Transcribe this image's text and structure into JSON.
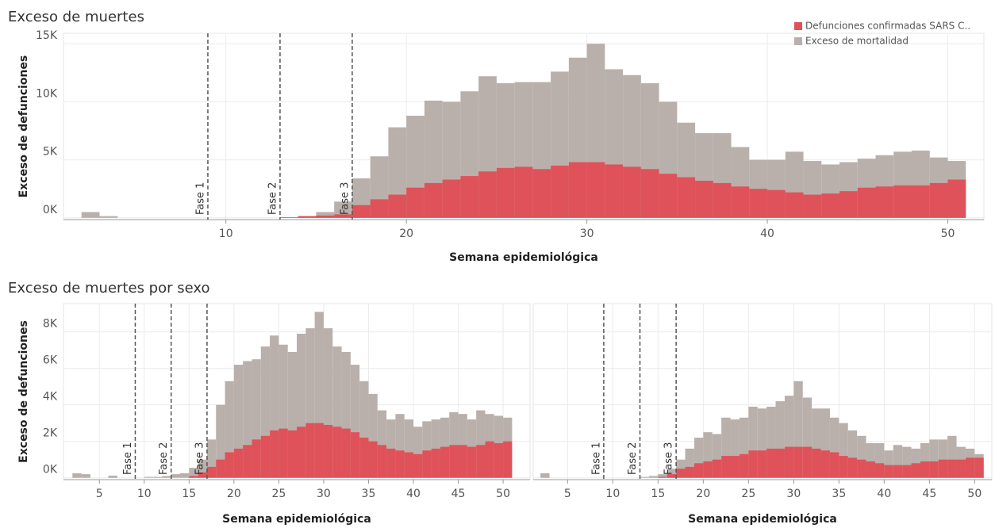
{
  "chart_data": [
    {
      "type": "bar",
      "title": "Exceso de muertes",
      "xlabel": "Semana epidemiológica",
      "ylabel": "Exceso de defunciones",
      "x": [
        2,
        3,
        4,
        5,
        6,
        7,
        8,
        9,
        10,
        11,
        12,
        13,
        14,
        15,
        16,
        17,
        18,
        19,
        20,
        21,
        22,
        23,
        24,
        25,
        26,
        27,
        28,
        29,
        30,
        31,
        32,
        33,
        34,
        35,
        36,
        37,
        38,
        39,
        40,
        41,
        42,
        43,
        44,
        45,
        46,
        47,
        48,
        49,
        50
      ],
      "series": [
        {
          "name": "Defunciones confirmadas SARS C..",
          "color": "#e05259",
          "values": [
            0,
            0,
            0,
            0,
            0,
            0,
            0,
            0,
            0,
            0,
            0,
            50,
            150,
            200,
            300,
            1100,
            1600,
            2000,
            2600,
            3000,
            3300,
            3600,
            4000,
            4300,
            4400,
            4200,
            4500,
            4800,
            4800,
            4600,
            4400,
            4200,
            3800,
            3500,
            3200,
            3000,
            2700,
            2500,
            2400,
            2200,
            2000,
            2100,
            2300,
            2600,
            2700,
            2800,
            2800,
            3000,
            3300
          ]
        },
        {
          "name": "Exceso de mortalidad",
          "color": "#b9b0ab",
          "values": [
            500,
            150,
            0,
            0,
            0,
            0,
            0,
            0,
            0,
            0,
            0,
            50,
            150,
            500,
            1400,
            3400,
            5300,
            7800,
            8800,
            10100,
            10000,
            10900,
            12200,
            11600,
            11700,
            11700,
            12600,
            13800,
            15000,
            12800,
            12300,
            11600,
            10000,
            8200,
            7300,
            7300,
            6100,
            5000,
            5000,
            5700,
            4900,
            4600,
            4800,
            5100,
            5400,
            5700,
            5800,
            5200,
            4900
          ]
        }
      ],
      "xlim": [
        1,
        52
      ],
      "xticks": [
        10,
        20,
        30,
        40,
        50
      ],
      "ylim": [
        -150,
        15900
      ],
      "yticks": [
        {
          "value": 0,
          "label": "0K"
        },
        {
          "value": 5000,
          "label": "5K"
        },
        {
          "value": 10000,
          "label": "10K"
        },
        {
          "value": 15000,
          "label": "15K"
        }
      ],
      "grid": true,
      "legend": "top-right",
      "annotations": [
        {
          "x": 9,
          "label": "Fase 1"
        },
        {
          "x": 13,
          "label": "Fase 2"
        },
        {
          "x": 17,
          "label": "Fase 3"
        }
      ]
    },
    {
      "type": "bar",
      "title": "Exceso de muertes por sexo",
      "xlabel": "Semana epidemiológica",
      "ylabel": "Exceso de defunciones",
      "x": [
        2,
        3,
        4,
        5,
        6,
        7,
        8,
        9,
        10,
        11,
        12,
        13,
        14,
        15,
        16,
        17,
        18,
        19,
        20,
        21,
        22,
        23,
        24,
        25,
        26,
        27,
        28,
        29,
        30,
        31,
        32,
        33,
        34,
        35,
        36,
        37,
        38,
        39,
        40,
        41,
        42,
        43,
        44,
        45,
        46,
        47,
        48,
        49,
        50
      ],
      "series": [
        {
          "color": "#e05259",
          "values": [
            0,
            0,
            0,
            0,
            0,
            0,
            0,
            0,
            0,
            0,
            0,
            0,
            0,
            100,
            300,
            600,
            1000,
            1400,
            1600,
            1800,
            2100,
            2300,
            2600,
            2700,
            2600,
            2800,
            3000,
            3000,
            2900,
            2800,
            2700,
            2500,
            2200,
            2000,
            1800,
            1600,
            1500,
            1400,
            1300,
            1500,
            1600,
            1700,
            1800,
            1800,
            1700,
            1800,
            2000,
            1900,
            2000
          ]
        },
        {
          "color": "#b9b0ab",
          "values": [
            250,
            200,
            0,
            0,
            120,
            0,
            0,
            0,
            50,
            50,
            100,
            200,
            250,
            550,
            1000,
            2100,
            4000,
            5300,
            6200,
            6400,
            6500,
            7200,
            7800,
            7300,
            6900,
            7900,
            8200,
            9100,
            8200,
            7200,
            6900,
            6200,
            5300,
            4600,
            3700,
            3200,
            3500,
            3200,
            2800,
            3100,
            3200,
            3300,
            3600,
            3500,
            3200,
            3700,
            3500,
            3400,
            3300
          ]
        }
      ],
      "xlim": [
        1,
        53
      ],
      "xticks": [
        5,
        10,
        15,
        20,
        25,
        30,
        35,
        40,
        45,
        50
      ],
      "ylim": [
        -100,
        9550
      ],
      "yticks": [
        {
          "value": 0,
          "label": "0K"
        },
        {
          "value": 2000,
          "label": "2K"
        },
        {
          "value": 4000,
          "label": "4K"
        },
        {
          "value": 6000,
          "label": "6K"
        },
        {
          "value": 8000,
          "label": "8K"
        }
      ],
      "grid": true,
      "annotations": [
        {
          "x": 9,
          "label": "Fase 1"
        },
        {
          "x": 13,
          "label": "Fase 2"
        },
        {
          "x": 17,
          "label": "Fase 3"
        }
      ]
    },
    {
      "type": "bar",
      "xlabel": "Semana epidemiológica",
      "x": [
        2,
        3,
        4,
        5,
        6,
        7,
        8,
        9,
        10,
        11,
        12,
        13,
        14,
        15,
        16,
        17,
        18,
        19,
        20,
        21,
        22,
        23,
        24,
        25,
        26,
        27,
        28,
        29,
        30,
        31,
        32,
        33,
        34,
        35,
        36,
        37,
        38,
        39,
        40,
        41,
        42,
        43,
        44,
        45,
        46,
        47,
        48,
        49,
        50
      ],
      "series": [
        {
          "color": "#e05259",
          "values": [
            0,
            0,
            0,
            0,
            0,
            0,
            0,
            0,
            0,
            0,
            0,
            0,
            0,
            50,
            200,
            500,
            600,
            800,
            900,
            1000,
            1200,
            1200,
            1300,
            1500,
            1500,
            1600,
            1600,
            1700,
            1700,
            1700,
            1600,
            1500,
            1400,
            1200,
            1100,
            1000,
            900,
            800,
            700,
            700,
            700,
            800,
            900,
            900,
            1000,
            1000,
            1000,
            1100,
            1100
          ]
        },
        {
          "color": "#b9b0ab",
          "values": [
            250,
            0,
            0,
            0,
            0,
            0,
            0,
            0,
            0,
            0,
            0,
            50,
            100,
            200,
            500,
            1000,
            1600,
            2200,
            2500,
            2400,
            3300,
            3200,
            3300,
            3900,
            3800,
            3900,
            4200,
            4500,
            5300,
            4400,
            3800,
            3800,
            3300,
            3000,
            2600,
            2300,
            1900,
            1900,
            1500,
            1800,
            1700,
            1600,
            1900,
            2100,
            2100,
            2300,
            1700,
            1600,
            1300
          ]
        }
      ],
      "xlim": [
        1.2,
        51.9
      ],
      "xticks": [
        5,
        10,
        15,
        20,
        25,
        30,
        35,
        40,
        45,
        50
      ],
      "ylim": [
        -100,
        9550
      ],
      "grid": true,
      "annotations": [
        {
          "x": 9,
          "label": "Fase 1"
        },
        {
          "x": 13,
          "label": "Fase 2"
        },
        {
          "x": 17,
          "label": "Fase 3"
        }
      ]
    }
  ]
}
